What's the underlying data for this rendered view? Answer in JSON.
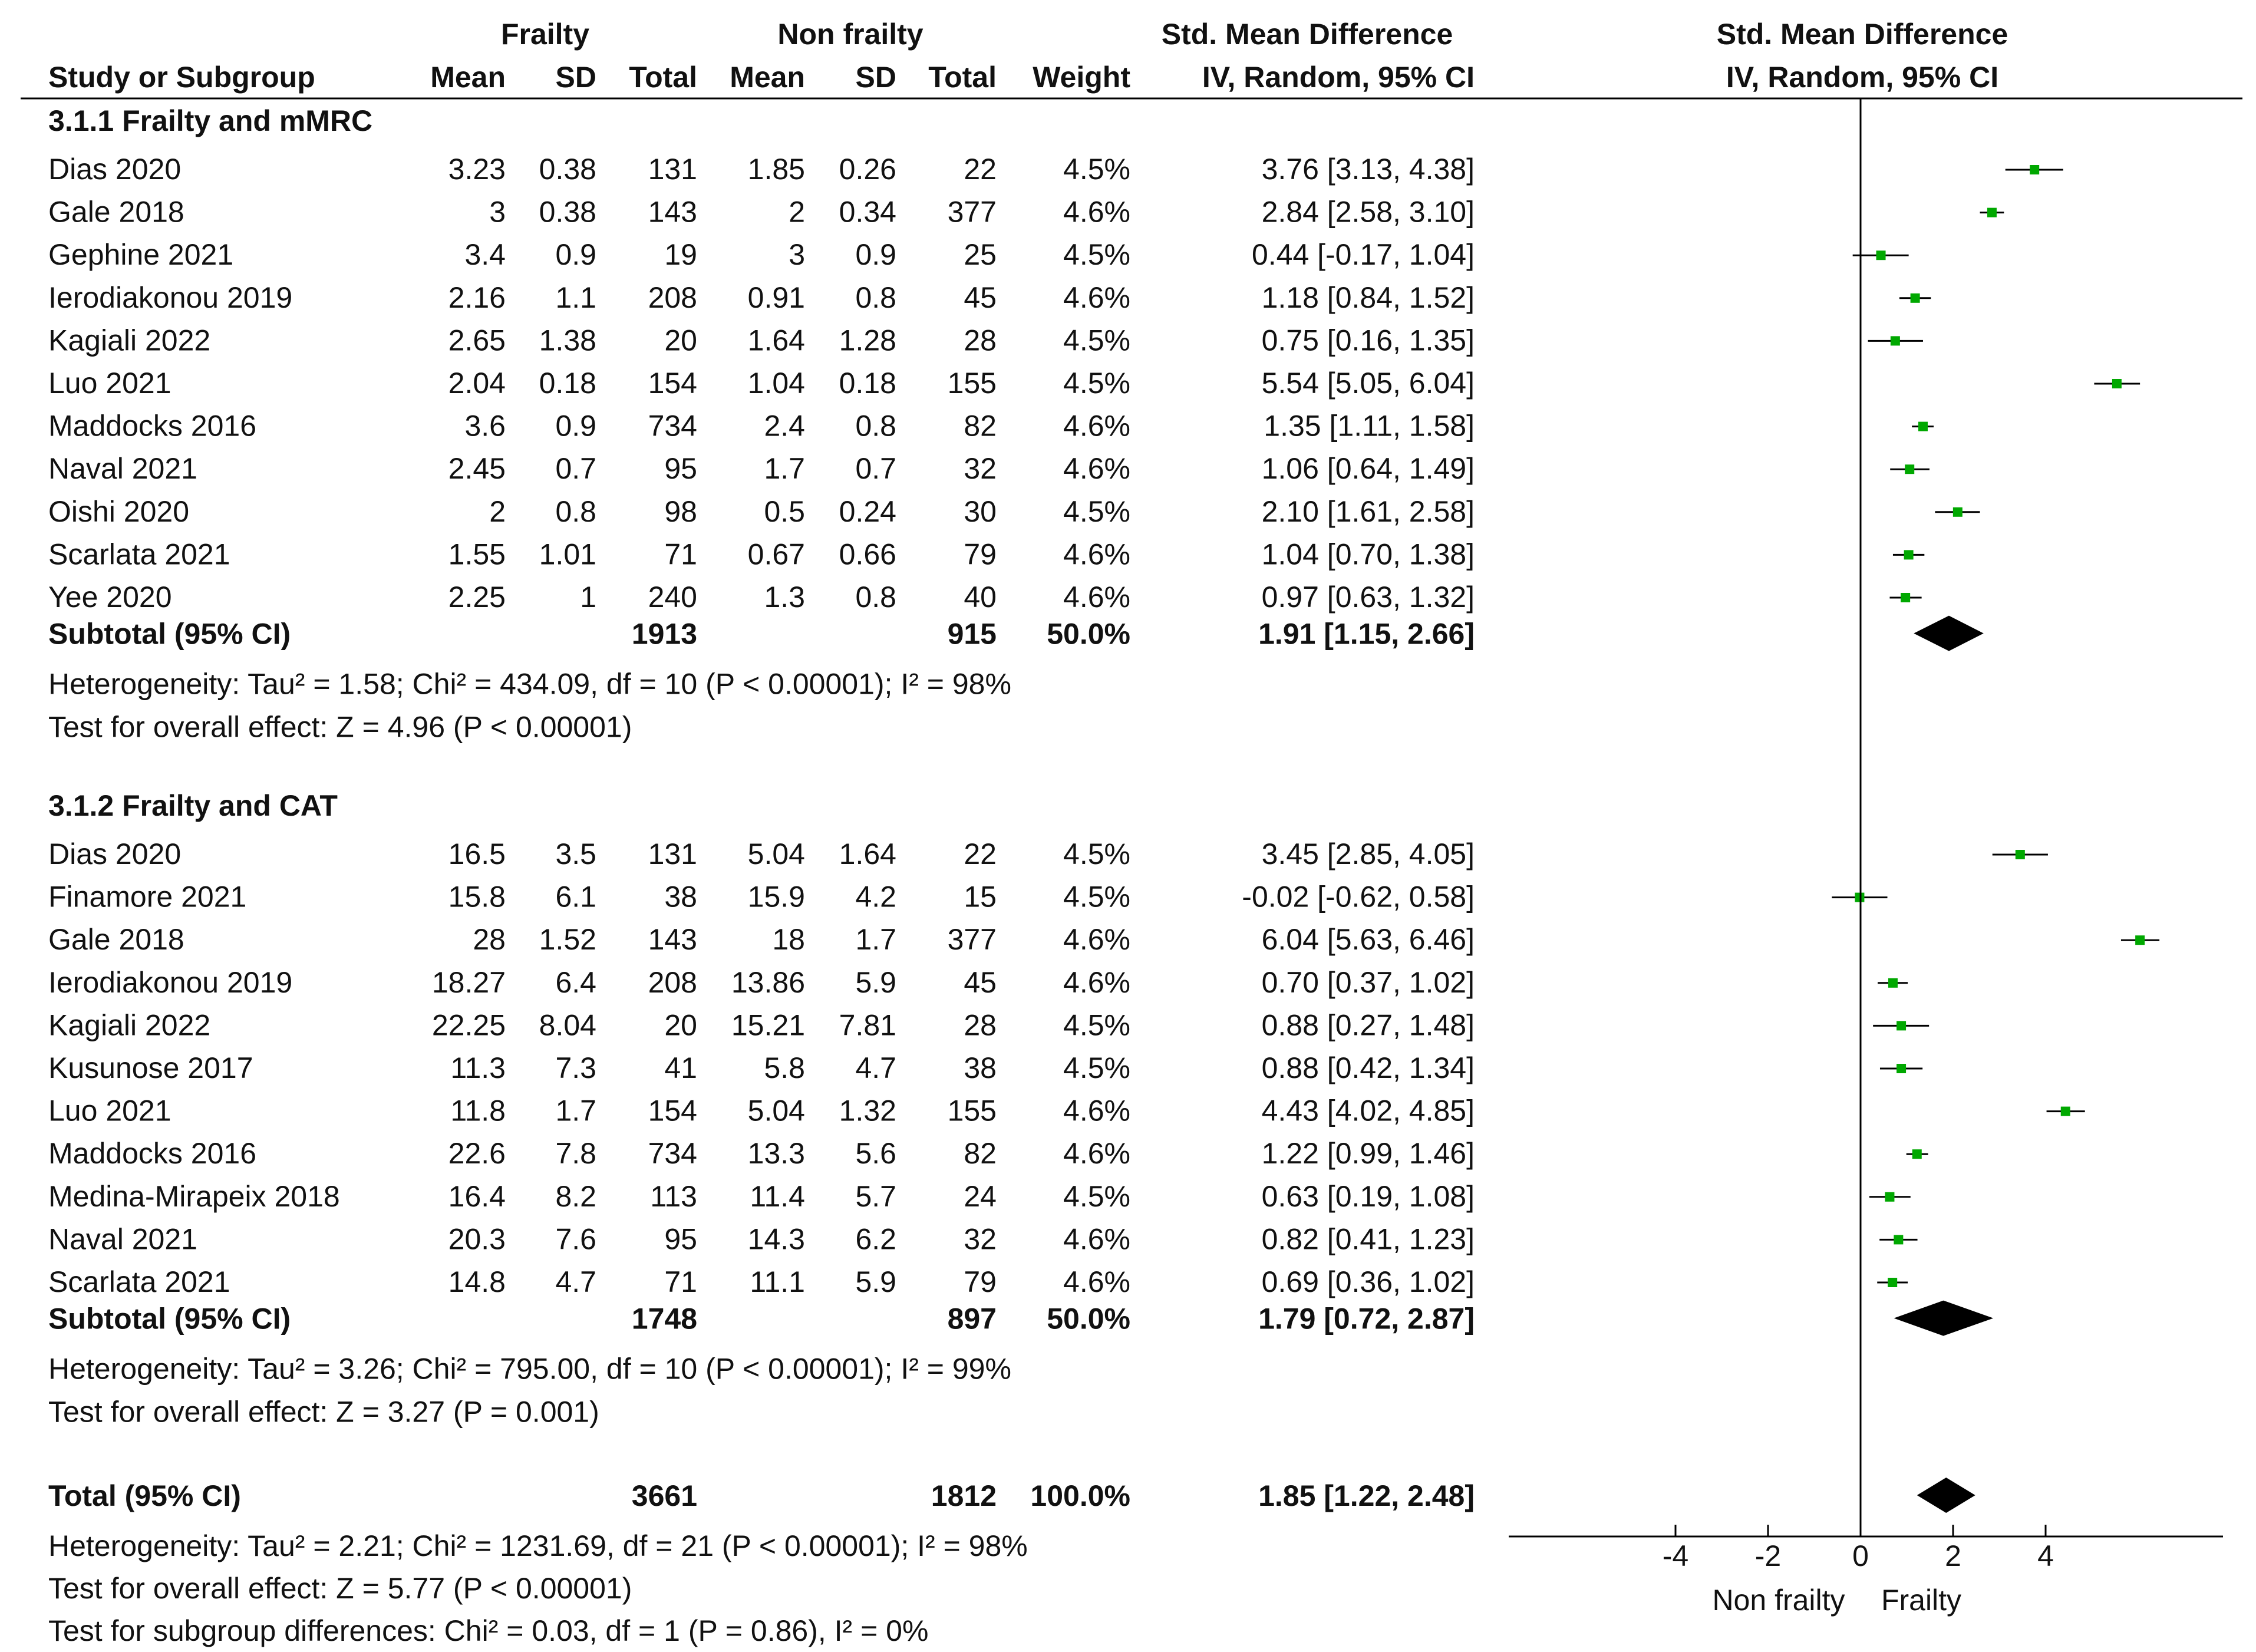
{
  "headers": {
    "frailty": "Frailty",
    "non_frailty": "Non frailty",
    "smd": "Std. Mean Difference",
    "smd_plot": "Std. Mean Difference",
    "study": "Study or Subgroup",
    "mean1": "Mean",
    "sd1": "SD",
    "total1": "Total",
    "mean2": "Mean",
    "sd2": "SD",
    "total2": "Total",
    "weight": "Weight",
    "method": "IV, Random, 95% CI",
    "method_plot": "IV, Random, 95% CI"
  },
  "subgroups": [
    {
      "title": "3.1.1 Frailty and mMRC",
      "studies": [
        {
          "name": "Dias 2020",
          "m1": "3.23",
          "sd1": "0.38",
          "n1": "131",
          "m2": "1.85",
          "sd2": "0.26",
          "n2": "22",
          "w": "4.5%",
          "ci": "3.76 [3.13, 4.38]",
          "est": 3.76,
          "lo": 3.13,
          "hi": 4.38
        },
        {
          "name": "Gale 2018",
          "m1": "3",
          "sd1": "0.38",
          "n1": "143",
          "m2": "2",
          "sd2": "0.34",
          "n2": "377",
          "w": "4.6%",
          "ci": "2.84 [2.58, 3.10]",
          "est": 2.84,
          "lo": 2.58,
          "hi": 3.1
        },
        {
          "name": "Gephine 2021",
          "m1": "3.4",
          "sd1": "0.9",
          "n1": "19",
          "m2": "3",
          "sd2": "0.9",
          "n2": "25",
          "w": "4.5%",
          "ci": "0.44 [-0.17, 1.04]",
          "est": 0.44,
          "lo": -0.17,
          "hi": 1.04
        },
        {
          "name": "Ierodiakonou 2019",
          "m1": "2.16",
          "sd1": "1.1",
          "n1": "208",
          "m2": "0.91",
          "sd2": "0.8",
          "n2": "45",
          "w": "4.6%",
          "ci": "1.18 [0.84, 1.52]",
          "est": 1.18,
          "lo": 0.84,
          "hi": 1.52
        },
        {
          "name": "Kagiali 2022",
          "m1": "2.65",
          "sd1": "1.38",
          "n1": "20",
          "m2": "1.64",
          "sd2": "1.28",
          "n2": "28",
          "w": "4.5%",
          "ci": "0.75 [0.16, 1.35]",
          "est": 0.75,
          "lo": 0.16,
          "hi": 1.35
        },
        {
          "name": "Luo 2021",
          "m1": "2.04",
          "sd1": "0.18",
          "n1": "154",
          "m2": "1.04",
          "sd2": "0.18",
          "n2": "155",
          "w": "4.5%",
          "ci": "5.54 [5.05, 6.04]",
          "est": 5.54,
          "lo": 5.05,
          "hi": 6.04
        },
        {
          "name": "Maddocks 2016",
          "m1": "3.6",
          "sd1": "0.9",
          "n1": "734",
          "m2": "2.4",
          "sd2": "0.8",
          "n2": "82",
          "w": "4.6%",
          "ci": "1.35 [1.11, 1.58]",
          "est": 1.35,
          "lo": 1.11,
          "hi": 1.58
        },
        {
          "name": "Naval 2021",
          "m1": "2.45",
          "sd1": "0.7",
          "n1": "95",
          "m2": "1.7",
          "sd2": "0.7",
          "n2": "32",
          "w": "4.6%",
          "ci": "1.06 [0.64, 1.49]",
          "est": 1.06,
          "lo": 0.64,
          "hi": 1.49
        },
        {
          "name": "Oishi 2020",
          "m1": "2",
          "sd1": "0.8",
          "n1": "98",
          "m2": "0.5",
          "sd2": "0.24",
          "n2": "30",
          "w": "4.5%",
          "ci": "2.10 [1.61, 2.58]",
          "est": 2.1,
          "lo": 1.61,
          "hi": 2.58
        },
        {
          "name": "Scarlata 2021",
          "m1": "1.55",
          "sd1": "1.01",
          "n1": "71",
          "m2": "0.67",
          "sd2": "0.66",
          "n2": "79",
          "w": "4.6%",
          "ci": "1.04 [0.70, 1.38]",
          "est": 1.04,
          "lo": 0.7,
          "hi": 1.38
        },
        {
          "name": "Yee 2020",
          "m1": "2.25",
          "sd1": "1",
          "n1": "240",
          "m2": "1.3",
          "sd2": "0.8",
          "n2": "40",
          "w": "4.6%",
          "ci": "0.97 [0.63, 1.32]",
          "est": 0.97,
          "lo": 0.63,
          "hi": 1.32
        }
      ],
      "subtotal": {
        "label": "Subtotal (95% CI)",
        "n1": "1913",
        "n2": "915",
        "w": "50.0%",
        "ci": "1.91 [1.15, 2.66]",
        "est": 1.91,
        "lo": 1.15,
        "hi": 2.66
      },
      "heterogeneity": "Heterogeneity: Tau² = 1.58; Chi² = 434.09, df = 10 (P < 0.00001); I² = 98%",
      "overall": "Test for overall effect: Z = 4.96 (P < 0.00001)"
    },
    {
      "title": "3.1.2 Frailty and CAT",
      "studies": [
        {
          "name": "Dias 2020",
          "m1": "16.5",
          "sd1": "3.5",
          "n1": "131",
          "m2": "5.04",
          "sd2": "1.64",
          "n2": "22",
          "w": "4.5%",
          "ci": "3.45 [2.85, 4.05]",
          "est": 3.45,
          "lo": 2.85,
          "hi": 4.05
        },
        {
          "name": "Finamore 2021",
          "m1": "15.8",
          "sd1": "6.1",
          "n1": "38",
          "m2": "15.9",
          "sd2": "4.2",
          "n2": "15",
          "w": "4.5%",
          "ci": "-0.02 [-0.62, 0.58]",
          "est": -0.02,
          "lo": -0.62,
          "hi": 0.58
        },
        {
          "name": "Gale 2018",
          "m1": "28",
          "sd1": "1.52",
          "n1": "143",
          "m2": "18",
          "sd2": "1.7",
          "n2": "377",
          "w": "4.6%",
          "ci": "6.04 [5.63, 6.46]",
          "est": 6.04,
          "lo": 5.63,
          "hi": 6.46
        },
        {
          "name": "Ierodiakonou 2019",
          "m1": "18.27",
          "sd1": "6.4",
          "n1": "208",
          "m2": "13.86",
          "sd2": "5.9",
          "n2": "45",
          "w": "4.6%",
          "ci": "0.70 [0.37, 1.02]",
          "est": 0.7,
          "lo": 0.37,
          "hi": 1.02
        },
        {
          "name": "Kagiali 2022",
          "m1": "22.25",
          "sd1": "8.04",
          "n1": "20",
          "m2": "15.21",
          "sd2": "7.81",
          "n2": "28",
          "w": "4.5%",
          "ci": "0.88 [0.27, 1.48]",
          "est": 0.88,
          "lo": 0.27,
          "hi": 1.48
        },
        {
          "name": "Kusunose 2017",
          "m1": "11.3",
          "sd1": "7.3",
          "n1": "41",
          "m2": "5.8",
          "sd2": "4.7",
          "n2": "38",
          "w": "4.5%",
          "ci": "0.88 [0.42, 1.34]",
          "est": 0.88,
          "lo": 0.42,
          "hi": 1.34
        },
        {
          "name": "Luo 2021",
          "m1": "11.8",
          "sd1": "1.7",
          "n1": "154",
          "m2": "5.04",
          "sd2": "1.32",
          "n2": "155",
          "w": "4.6%",
          "ci": "4.43 [4.02, 4.85]",
          "est": 4.43,
          "lo": 4.02,
          "hi": 4.85
        },
        {
          "name": "Maddocks 2016",
          "m1": "22.6",
          "sd1": "7.8",
          "n1": "734",
          "m2": "13.3",
          "sd2": "5.6",
          "n2": "82",
          "w": "4.6%",
          "ci": "1.22 [0.99, 1.46]",
          "est": 1.22,
          "lo": 0.99,
          "hi": 1.46
        },
        {
          "name": "Medina-Mirapeix 2018",
          "m1": "16.4",
          "sd1": "8.2",
          "n1": "113",
          "m2": "11.4",
          "sd2": "5.7",
          "n2": "24",
          "w": "4.5%",
          "ci": "0.63 [0.19, 1.08]",
          "est": 0.63,
          "lo": 0.19,
          "hi": 1.08
        },
        {
          "name": "Naval 2021",
          "m1": "20.3",
          "sd1": "7.6",
          "n1": "95",
          "m2": "14.3",
          "sd2": "6.2",
          "n2": "32",
          "w": "4.6%",
          "ci": "0.82 [0.41, 1.23]",
          "est": 0.82,
          "lo": 0.41,
          "hi": 1.23
        },
        {
          "name": "Scarlata 2021",
          "m1": "14.8",
          "sd1": "4.7",
          "n1": "71",
          "m2": "11.1",
          "sd2": "5.9",
          "n2": "79",
          "w": "4.6%",
          "ci": "0.69 [0.36, 1.02]",
          "est": 0.69,
          "lo": 0.36,
          "hi": 1.02
        }
      ],
      "subtotal": {
        "label": "Subtotal (95% CI)",
        "n1": "1748",
        "n2": "897",
        "w": "50.0%",
        "ci": "1.79 [0.72, 2.87]",
        "est": 1.79,
        "lo": 0.72,
        "hi": 2.87
      },
      "heterogeneity": "Heterogeneity: Tau² = 3.26; Chi² = 795.00, df = 10 (P < 0.00001); I² = 99%",
      "overall": "Test for overall effect: Z = 3.27 (P = 0.001)"
    }
  ],
  "total": {
    "label": "Total (95% CI)",
    "n1": "3661",
    "n2": "1812",
    "w": "100.0%",
    "ci": "1.85 [1.22, 2.48]",
    "est": 1.85,
    "lo": 1.22,
    "hi": 2.48,
    "heterogeneity": "Heterogeneity: Tau² = 2.21; Chi² = 1231.69, df = 21 (P < 0.00001); I² = 98%",
    "overall": "Test for overall effect: Z = 5.77 (P < 0.00001)",
    "subgroup_diff": "Test for subgroup differences: Chi² = 0.03, df = 1 (P = 0.86), I² = 0%"
  },
  "axis": {
    "ticks": [
      -4,
      -2,
      0,
      2,
      4
    ],
    "tick_labels": [
      "-4",
      "-2",
      "0",
      "2",
      "4"
    ],
    "left_label": "Non frailty",
    "right_label": "Frailty"
  },
  "chart_data": {
    "type": "forest",
    "title": "Std. Mean Difference IV, Random, 95% CI",
    "xlabel_left": "Non frailty",
    "xlabel_right": "Frailty",
    "x_ticks": [
      -4,
      -2,
      0,
      2,
      4
    ],
    "reference_line": 0,
    "series": [
      {
        "name": "3.1.1 Frailty and mMRC",
        "subtotal": 1.91,
        "ci": [
          1.15,
          2.66
        ]
      },
      {
        "name": "3.1.2 Frailty and CAT",
        "subtotal": 1.79,
        "ci": [
          0.72,
          2.87
        ]
      }
    ],
    "overall": {
      "estimate": 1.85,
      "ci": [
        1.22,
        2.48
      ]
    }
  },
  "colors": {
    "point": "#00a800",
    "line": "#000000",
    "diamond": "#000000"
  }
}
